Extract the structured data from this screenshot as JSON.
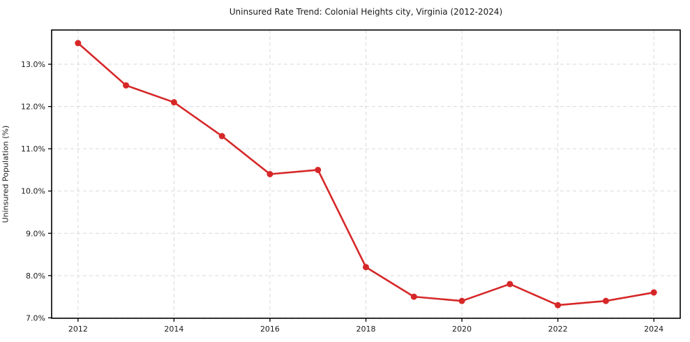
{
  "chart_data": {
    "type": "line",
    "title": "Uninsured Rate Trend: Colonial Heights city, Virginia (2012-2024)",
    "ylabel": "Uninsured Population (%)",
    "xlabel": "",
    "x": [
      2012,
      2013,
      2014,
      2015,
      2016,
      2017,
      2018,
      2019,
      2020,
      2021,
      2022,
      2023,
      2024
    ],
    "values": [
      13.5,
      12.5,
      12.1,
      11.3,
      10.4,
      10.5,
      8.2,
      7.5,
      7.4,
      7.8,
      7.3,
      7.4,
      7.6
    ],
    "xticks": [
      2012,
      2014,
      2016,
      2018,
      2020,
      2022,
      2024
    ],
    "xtick_labels": [
      "2012",
      "2014",
      "2016",
      "2018",
      "2020",
      "2022",
      "2024"
    ],
    "yticks": [
      7.0,
      8.0,
      9.0,
      10.0,
      11.0,
      12.0,
      13.0
    ],
    "ytick_labels": [
      "7.0%",
      "8.0%",
      "9.0%",
      "10.0%",
      "11.0%",
      "12.0%",
      "13.0%"
    ],
    "xlim": [
      2011.45,
      2024.55
    ],
    "ylim": [
      6.99,
      13.81
    ],
    "grid": true,
    "grid_style": "dashed",
    "legend": "none",
    "line_color": "#d62728",
    "marker": "o",
    "marker_color": "#d62728",
    "grid_color": "#d9d9d9",
    "axis_color": "#000000",
    "text_color": "#1a1a1a"
  }
}
